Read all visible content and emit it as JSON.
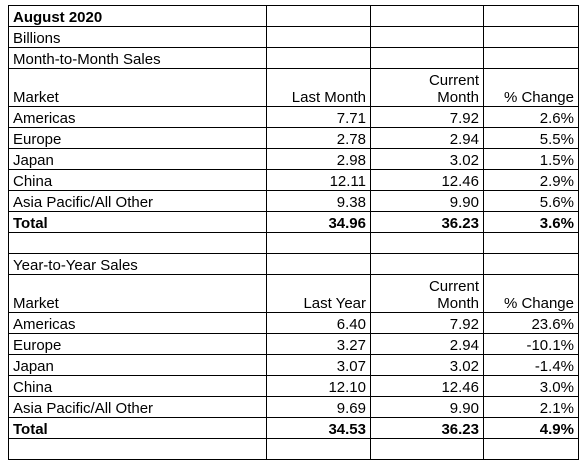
{
  "title": "August 2020",
  "unit": "Billions",
  "sections": [
    {
      "title": "Month-to-Month Sales",
      "header": [
        "Market",
        "Last Month",
        "Current\nMonth",
        "% Change"
      ],
      "rows": [
        [
          "Americas",
          "7.71",
          "7.92",
          "2.6%"
        ],
        [
          "Europe",
          "2.78",
          "2.94",
          "5.5%"
        ],
        [
          "Japan",
          "2.98",
          "3.02",
          "1.5%"
        ],
        [
          "China",
          "12.11",
          "12.46",
          "2.9%"
        ],
        [
          "Asia Pacific/All Other",
          "9.38",
          "9.90",
          "5.6%"
        ]
      ],
      "total": [
        "Total",
        "34.96",
        "36.23",
        "3.6%"
      ]
    },
    {
      "title": "Year-to-Year Sales",
      "header": [
        "Market",
        "Last Year",
        "Current\nMonth",
        "% Change"
      ],
      "rows": [
        [
          "Americas",
          "6.40",
          "7.92",
          "23.6%"
        ],
        [
          "Europe",
          "3.27",
          "2.94",
          "-10.1%"
        ],
        [
          "Japan",
          "3.07",
          "3.02",
          "-1.4%"
        ],
        [
          "China",
          "12.10",
          "12.46",
          "3.0%"
        ],
        [
          "Asia Pacific/All Other",
          "9.69",
          "9.90",
          "2.1%"
        ]
      ],
      "total": [
        "Total",
        "34.53",
        "36.23",
        "4.9%"
      ]
    }
  ]
}
